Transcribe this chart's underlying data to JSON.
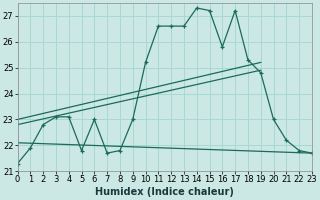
{
  "xlabel": "Humidex (Indice chaleur)",
  "background_color": "#cce8e4",
  "grid_color": "#a8d8d0",
  "line_color": "#1a6b5a",
  "xlim": [
    0,
    23
  ],
  "ylim": [
    21,
    27.5
  ],
  "yticks": [
    21,
    22,
    23,
    24,
    25,
    26,
    27
  ],
  "xticks": [
    0,
    1,
    2,
    3,
    4,
    5,
    6,
    7,
    8,
    9,
    10,
    11,
    12,
    13,
    14,
    15,
    16,
    17,
    18,
    19,
    20,
    21,
    22,
    23
  ],
  "xtick_labels": [
    "0",
    "1",
    "2",
    "3",
    "4",
    "5",
    "6",
    "7",
    "8",
    "9",
    "10",
    "11",
    "12",
    "13",
    "14",
    "15",
    "16",
    "17",
    "18",
    "19",
    "20",
    "21",
    "22",
    "23"
  ],
  "line1_x": [
    0,
    1,
    2,
    3,
    4,
    5,
    6,
    7,
    8,
    9,
    10,
    11,
    12,
    13,
    14,
    15,
    16,
    17,
    18,
    19,
    20,
    21,
    22,
    23
  ],
  "line1_y": [
    21.3,
    21.9,
    22.8,
    23.1,
    23.1,
    21.8,
    23.0,
    21.7,
    21.8,
    23.0,
    25.2,
    26.6,
    26.6,
    26.6,
    27.3,
    27.2,
    25.8,
    27.2,
    25.3,
    24.8,
    23.0,
    22.2,
    21.8,
    21.7
  ],
  "line2_x": [
    0,
    19
  ],
  "line2_y": [
    23.0,
    25.2
  ],
  "line3_x": [
    0,
    19
  ],
  "line3_y": [
    22.8,
    24.9
  ],
  "line4_x": [
    0,
    23
  ],
  "line4_y": [
    22.1,
    21.7
  ],
  "tick_fontsize": 6,
  "xlabel_fontsize": 7
}
